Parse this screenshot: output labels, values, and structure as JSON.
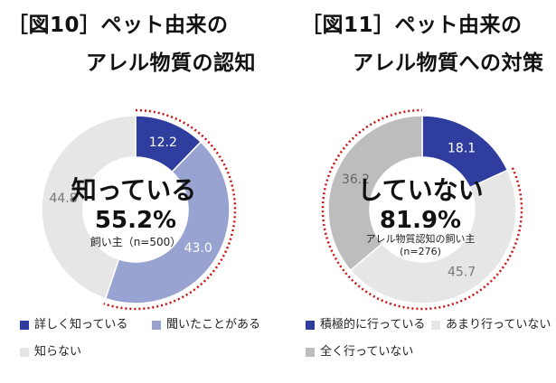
{
  "charts": [
    {
      "title_prefix": "［図10］",
      "title_line1": "ペット由来の",
      "title_line2": "アレル物質の認知",
      "center_main": "知っている",
      "center_value": "55.2%",
      "center_sub": "飼い主（n=500）"
    },
    {
      "title_prefix": "［図11］",
      "title_line1": "ペット由来の",
      "title_line2": "アレル物質への対策",
      "center_main": "していない",
      "center_value": "81.9%",
      "center_sub1": "アレル物質認知の飼い主",
      "center_sub2": "(n=276)"
    }
  ],
  "chart_data": [
    {
      "type": "pie",
      "donut": true,
      "categories": [
        "詳しく知っている",
        "聞いたことがある",
        "知らない"
      ],
      "values": [
        12.2,
        43.0,
        44.8
      ],
      "labels": [
        "12.2",
        "43.0",
        "44.8"
      ],
      "colors": [
        "#2f3d9e",
        "#99a3d1",
        "#e6e6e6"
      ],
      "label_colors": [
        "#ffffff",
        "#ffffff",
        "#777777"
      ],
      "highlight_sum": "55.2%"
    },
    {
      "type": "pie",
      "donut": true,
      "categories": [
        "積極的に行っている",
        "あまり行っていない",
        "全く行っていない"
      ],
      "values": [
        18.1,
        45.7,
        36.2
      ],
      "labels": [
        "18.1",
        "45.7",
        "36.2"
      ],
      "colors": [
        "#2f3d9e",
        "#e6e6e6",
        "#bdbdbd"
      ],
      "label_colors": [
        "#ffffff",
        "#777777",
        "#666666"
      ],
      "highlight_sum": "81.9%"
    }
  ],
  "legend_marker": "■",
  "accent_dotted_color": "#cc1111"
}
